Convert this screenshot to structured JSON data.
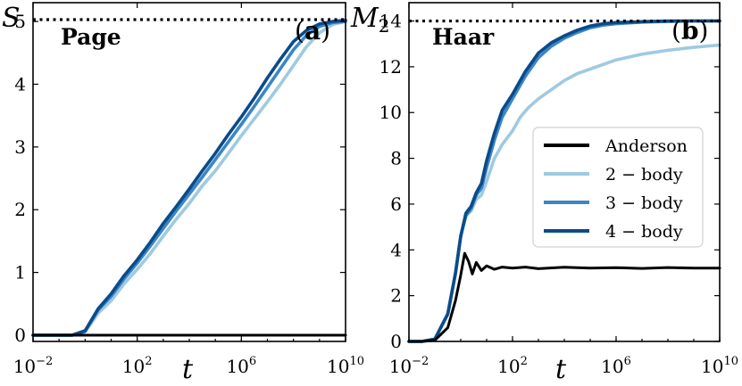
{
  "colors": {
    "Anderson": "#000000",
    "2-body": "#9ecae1",
    "3-body": "#3a86c6",
    "4-body": "#0b4b8a"
  },
  "chart_data": [
    {
      "type": "line",
      "panel_tag": "(a)",
      "panel_letter": "a",
      "ylabel": "S",
      "ylabel_sub": "",
      "xlabel": "t",
      "xscale": "log10",
      "xlim_exp": [
        -2,
        10
      ],
      "ylim": [
        -0.1,
        5.3
      ],
      "xticks": [
        {
          "base": "10",
          "exp": "−2"
        },
        {
          "base": "10",
          "exp": "2"
        },
        {
          "base": "10",
          "exp": "6"
        },
        {
          "base": "10",
          "exp": "10"
        }
      ],
      "yticks": [
        "0",
        "1",
        "2",
        "3",
        "4",
        "5"
      ],
      "reference": {
        "label": "Page",
        "value": 5.03
      },
      "series": [
        {
          "name": "Anderson",
          "log10_x": [
            -2,
            10
          ],
          "y": [
            0.0,
            0.0
          ]
        },
        {
          "name": "2-body",
          "log10_x": [
            -2,
            -0.5,
            0,
            0.5,
            1,
            1.5,
            2,
            2.5,
            3,
            3.5,
            4,
            4.5,
            5,
            5.5,
            6,
            6.5,
            7,
            7.5,
            8,
            8.5,
            9,
            9.5,
            10
          ],
          "y": [
            0.0,
            0.0,
            0.05,
            0.35,
            0.55,
            0.82,
            1.05,
            1.3,
            1.58,
            1.85,
            2.1,
            2.38,
            2.62,
            2.9,
            3.18,
            3.45,
            3.72,
            4.0,
            4.3,
            4.6,
            4.82,
            4.95,
            5.0
          ]
        },
        {
          "name": "3-body",
          "log10_x": [
            -2,
            -0.5,
            0,
            0.5,
            1,
            1.5,
            2,
            2.5,
            3,
            3.5,
            4,
            4.5,
            5,
            5.5,
            6,
            6.5,
            7,
            7.5,
            8,
            8.5,
            9,
            9.5,
            10
          ],
          "y": [
            0.0,
            0.0,
            0.06,
            0.4,
            0.62,
            0.9,
            1.15,
            1.42,
            1.7,
            1.98,
            2.25,
            2.52,
            2.8,
            3.08,
            3.36,
            3.65,
            3.95,
            4.25,
            4.55,
            4.78,
            4.92,
            4.98,
            5.0
          ]
        },
        {
          "name": "4-body",
          "log10_x": [
            -2,
            -0.5,
            0,
            0.5,
            1,
            1.5,
            2,
            2.5,
            3,
            3.5,
            4,
            4.5,
            5,
            5.5,
            6,
            6.5,
            7,
            7.5,
            8,
            8.5,
            9,
            9.5,
            10
          ],
          "y": [
            0.0,
            0.0,
            0.07,
            0.42,
            0.66,
            0.95,
            1.2,
            1.48,
            1.78,
            2.05,
            2.33,
            2.62,
            2.9,
            3.2,
            3.48,
            3.78,
            4.1,
            4.4,
            4.68,
            4.86,
            4.96,
            5.0,
            5.02
          ]
        }
      ]
    },
    {
      "type": "line",
      "panel_tag": "(b)",
      "panel_letter": "b",
      "ylabel": "M",
      "ylabel_sub": "2",
      "xlabel": "t",
      "xscale": "log10",
      "xlim_exp": [
        -2,
        10
      ],
      "ylim": [
        0,
        14.8
      ],
      "xticks": [
        {
          "base": "10",
          "exp": "−2"
        },
        {
          "base": "10",
          "exp": "2"
        },
        {
          "base": "10",
          "exp": "6"
        },
        {
          "base": "10",
          "exp": "10"
        }
      ],
      "yticks": [
        "0",
        "2",
        "4",
        "6",
        "8",
        "10",
        "12",
        "14"
      ],
      "reference": {
        "label": "Haar",
        "value": 14.0
      },
      "legend": {
        "placement": "center-right",
        "entries": [
          "Anderson",
          "2 − body",
          "3 − body",
          "4 − body"
        ]
      },
      "series": [
        {
          "name": "Anderson",
          "log10_x": [
            -2,
            -1.5,
            -1,
            -0.5,
            -0.2,
            0,
            0.15,
            0.3,
            0.45,
            0.6,
            0.8,
            1,
            1.3,
            1.6,
            2,
            2.5,
            3,
            4,
            5,
            6,
            7,
            8,
            9,
            10
          ],
          "y": [
            0.0,
            0.0,
            0.05,
            0.6,
            1.8,
            2.9,
            3.85,
            3.5,
            2.95,
            3.45,
            3.1,
            3.3,
            3.15,
            3.25,
            3.2,
            3.25,
            3.18,
            3.24,
            3.2,
            3.22,
            3.19,
            3.23,
            3.2,
            3.2
          ]
        },
        {
          "name": "2-body",
          "log10_x": [
            -2,
            -1.5,
            -1,
            -0.5,
            -0.2,
            0,
            0.2,
            0.4,
            0.6,
            0.8,
            1,
            1.3,
            1.6,
            2,
            2.3,
            2.6,
            3,
            3.5,
            4,
            4.5,
            5,
            5.5,
            6,
            7,
            8,
            9,
            10
          ],
          "y": [
            0.0,
            0.0,
            0.1,
            1.2,
            3.0,
            4.6,
            5.5,
            5.7,
            6.2,
            6.4,
            7.0,
            8.0,
            8.6,
            9.2,
            9.8,
            10.2,
            10.6,
            11.0,
            11.4,
            11.7,
            11.9,
            12.1,
            12.3,
            12.55,
            12.72,
            12.85,
            12.95
          ]
        },
        {
          "name": "3-body",
          "log10_x": [
            -2,
            -1.5,
            -1,
            -0.5,
            -0.2,
            0,
            0.2,
            0.4,
            0.6,
            0.8,
            1,
            1.3,
            1.6,
            2,
            2.5,
            3,
            3.5,
            4,
            4.5,
            5,
            5.5,
            6,
            7,
            8,
            9,
            10
          ],
          "y": [
            0.0,
            0.0,
            0.1,
            1.2,
            3.0,
            4.6,
            5.5,
            5.8,
            6.4,
            6.7,
            7.6,
            8.8,
            9.8,
            10.6,
            11.6,
            12.4,
            12.9,
            13.25,
            13.5,
            13.7,
            13.82,
            13.88,
            13.95,
            13.98,
            14.0,
            14.0
          ]
        },
        {
          "name": "4-body",
          "log10_x": [
            -2,
            -1.5,
            -1,
            -0.5,
            -0.2,
            0,
            0.2,
            0.4,
            0.6,
            0.8,
            1,
            1.3,
            1.6,
            2,
            2.5,
            3,
            3.5,
            4,
            4.5,
            5,
            5.5,
            6,
            7,
            8,
            9,
            10
          ],
          "y": [
            0.0,
            0.0,
            0.1,
            1.2,
            3.0,
            4.6,
            5.6,
            5.9,
            6.5,
            6.9,
            7.9,
            9.1,
            10.1,
            10.8,
            11.8,
            12.6,
            13.05,
            13.35,
            13.6,
            13.78,
            13.88,
            13.93,
            13.97,
            14.0,
            14.0,
            14.0
          ]
        }
      ]
    }
  ]
}
